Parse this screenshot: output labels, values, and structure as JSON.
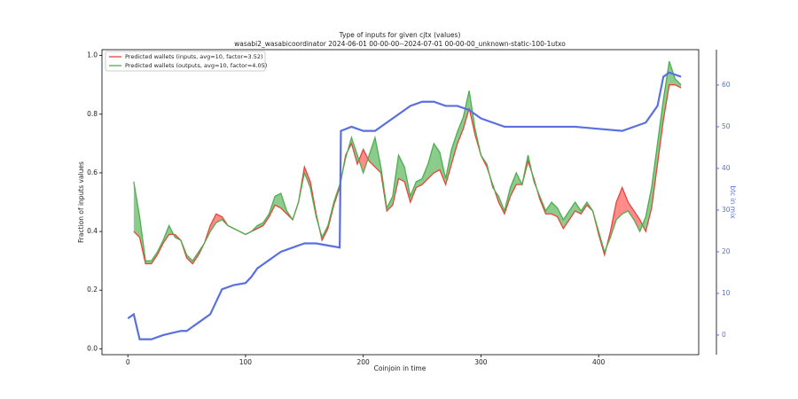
{
  "chart_data": {
    "type": "line",
    "title": "Type of inputs for given cjtx (values)",
    "subtitle": "wasabi2_wasabicoordinator 2024-06-01 00-00-00--2024-07-01 00-00-00_unknown-static-100-1utxo",
    "x_label": "Coinjoin in time",
    "y_label": "Fraction of inputs values",
    "y2_label": "btc in mix",
    "xlim": [
      -22,
      485
    ],
    "ylim": [
      -0.02,
      1.02
    ],
    "y2lim": [
      -4.7,
      68.5
    ],
    "xticks": [
      0,
      100,
      200,
      300,
      400
    ],
    "yticks": [
      {
        "value": 0,
        "label": "0.0"
      },
      0.2,
      0.4,
      0.6,
      0.8,
      {
        "value": 1,
        "label": "1.0"
      }
    ],
    "y2ticks": [
      0,
      10,
      20,
      30,
      40,
      50,
      60
    ],
    "legend": "upper left",
    "fill_colors": {
      "above": "#2ca02c",
      "below": "#ff2a2a"
    },
    "x": [
      5,
      10,
      15,
      20,
      25,
      30,
      35,
      40,
      45,
      50,
      55,
      60,
      65,
      70,
      75,
      80,
      85,
      90,
      95,
      100,
      105,
      110,
      115,
      120,
      125,
      130,
      135,
      140,
      145,
      150,
      155,
      160,
      165,
      170,
      175,
      180,
      185,
      190,
      195,
      200,
      205,
      210,
      215,
      220,
      225,
      230,
      235,
      240,
      245,
      250,
      255,
      260,
      265,
      270,
      275,
      280,
      285,
      290,
      295,
      300,
      305,
      310,
      315,
      320,
      325,
      330,
      335,
      340,
      345,
      350,
      355,
      360,
      365,
      370,
      375,
      380,
      385,
      390,
      395,
      400,
      405,
      410,
      415,
      420,
      425,
      430,
      435,
      440,
      445,
      450,
      455,
      460,
      465,
      470
    ],
    "series": [
      {
        "name": "Predicted wallets (inputs, avg=10, factor=3.52)",
        "color": "#e8453c",
        "values": [
          0.4,
          0.38,
          0.29,
          0.29,
          0.32,
          0.36,
          0.39,
          0.39,
          0.37,
          0.31,
          0.29,
          0.32,
          0.36,
          0.42,
          0.46,
          0.45,
          0.42,
          0.41,
          0.4,
          0.39,
          0.4,
          0.41,
          0.42,
          0.45,
          0.49,
          0.48,
          0.46,
          0.44,
          0.5,
          0.62,
          0.57,
          0.46,
          0.37,
          0.41,
          0.49,
          0.55,
          0.66,
          0.7,
          0.63,
          0.68,
          0.64,
          0.62,
          0.6,
          0.47,
          0.49,
          0.58,
          0.57,
          0.5,
          0.55,
          0.56,
          0.58,
          0.6,
          0.61,
          0.56,
          0.63,
          0.7,
          0.75,
          0.82,
          0.73,
          0.66,
          0.62,
          0.56,
          0.5,
          0.46,
          0.52,
          0.56,
          0.56,
          0.64,
          0.58,
          0.51,
          0.46,
          0.46,
          0.45,
          0.41,
          0.44,
          0.47,
          0.46,
          0.49,
          0.47,
          0.39,
          0.32,
          0.4,
          0.5,
          0.55,
          0.5,
          0.47,
          0.44,
          0.4,
          0.48,
          0.63,
          0.78,
          0.9,
          0.9,
          0.89
        ]
      },
      {
        "name": "Predicted wallets (outputs, avg=10, factor=4.05)",
        "color": "#4caf50",
        "values": [
          0.57,
          0.45,
          0.3,
          0.3,
          0.33,
          0.37,
          0.42,
          0.38,
          0.37,
          0.32,
          0.3,
          0.33,
          0.36,
          0.4,
          0.43,
          0.44,
          0.42,
          0.41,
          0.4,
          0.39,
          0.4,
          0.42,
          0.43,
          0.46,
          0.52,
          0.53,
          0.47,
          0.44,
          0.5,
          0.6,
          0.55,
          0.45,
          0.38,
          0.42,
          0.5,
          0.56,
          0.65,
          0.72,
          0.66,
          0.6,
          0.66,
          0.72,
          0.62,
          0.48,
          0.52,
          0.66,
          0.62,
          0.52,
          0.57,
          0.58,
          0.63,
          0.7,
          0.67,
          0.58,
          0.68,
          0.74,
          0.79,
          0.88,
          0.75,
          0.66,
          0.63,
          0.55,
          0.52,
          0.47,
          0.55,
          0.6,
          0.56,
          0.66,
          0.57,
          0.52,
          0.47,
          0.5,
          0.48,
          0.44,
          0.47,
          0.5,
          0.47,
          0.5,
          0.47,
          0.4,
          0.33,
          0.38,
          0.44,
          0.46,
          0.47,
          0.44,
          0.4,
          0.45,
          0.55,
          0.7,
          0.85,
          0.98,
          0.92,
          0.9
        ]
      }
    ],
    "y2_series": {
      "name": "btc in mix",
      "axis": "y2",
      "color": "#5a6fe0",
      "x": [
        0,
        5,
        10,
        20,
        30,
        45,
        50,
        55,
        60,
        70,
        75,
        80,
        90,
        100,
        105,
        110,
        115,
        120,
        125,
        130,
        140,
        150,
        160,
        170,
        180,
        181,
        190,
        200,
        210,
        220,
        230,
        240,
        250,
        260,
        270,
        280,
        290,
        300,
        310,
        320,
        340,
        360,
        380,
        400,
        420,
        440,
        450,
        455,
        460,
        470
      ],
      "values": [
        4,
        5,
        -1,
        -1,
        0,
        1,
        1,
        2,
        3,
        5,
        8,
        11,
        12,
        12.5,
        14,
        16,
        17,
        18,
        19,
        20,
        21,
        22,
        22,
        21.5,
        21,
        49,
        50,
        49,
        49,
        51,
        53,
        55,
        56,
        56,
        55,
        55,
        54,
        52,
        51,
        50,
        50,
        50,
        50,
        49.5,
        49,
        51,
        55,
        62,
        63,
        62
      ]
    }
  }
}
